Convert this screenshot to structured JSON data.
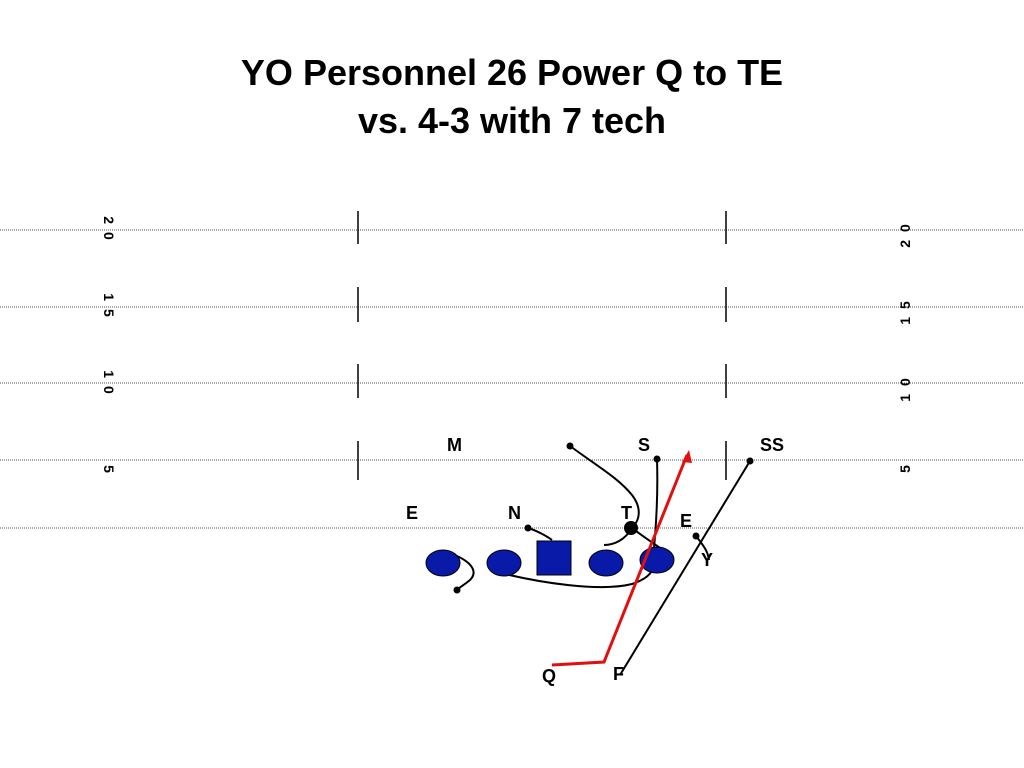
{
  "title": {
    "line1": "YO Personnel 26 Power Q to TE",
    "line2": "vs.  4-3 with 7 tech"
  },
  "field": {
    "yard_numbers": [
      "20",
      "15",
      "10",
      "5"
    ]
  },
  "defense": {
    "labels": [
      "M",
      "S",
      "SS",
      "E",
      "N",
      "T",
      "E"
    ]
  },
  "offense": {
    "labels": [
      "Y",
      "Q",
      "F"
    ]
  },
  "colors": {
    "offense_fill": "#0a1aa8",
    "qb_route": "#e01010",
    "lines": "#000000"
  }
}
